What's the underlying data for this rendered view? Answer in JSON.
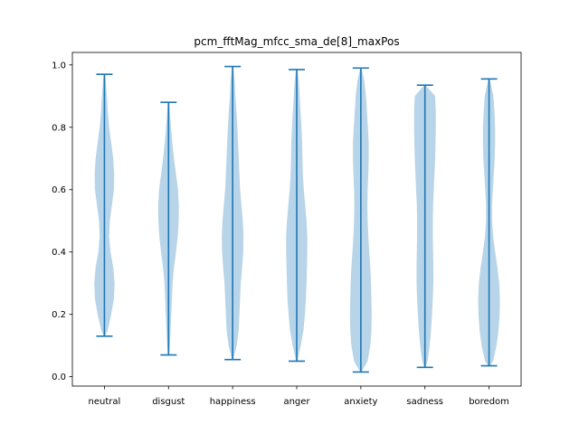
{
  "chart_data": {
    "type": "violin",
    "title": "pcm_fftMag_mfcc_sma_de[8]_maxPos",
    "xlabel": "",
    "ylabel": "",
    "ylim": [
      -0.03,
      1.04
    ],
    "yticks": [
      0.0,
      0.2,
      0.4,
      0.6,
      0.8,
      1.0
    ],
    "ytick_labels": [
      "0.0",
      "0.2",
      "0.4",
      "0.6",
      "0.8",
      "1.0"
    ],
    "categories": [
      "neutral",
      "disgust",
      "happiness",
      "anger",
      "anxiety",
      "sadness",
      "boredom"
    ],
    "grid": false,
    "colors": {
      "body": "#b8d4e8",
      "line": "#1f77b4"
    },
    "violins": [
      {
        "name": "neutral",
        "min": 0.13,
        "max": 0.97,
        "density": [
          [
            0.13,
            0.05
          ],
          [
            0.15,
            0.25
          ],
          [
            0.2,
            0.5
          ],
          [
            0.25,
            0.7
          ],
          [
            0.3,
            0.75
          ],
          [
            0.35,
            0.65
          ],
          [
            0.4,
            0.45
          ],
          [
            0.45,
            0.35
          ],
          [
            0.5,
            0.4
          ],
          [
            0.55,
            0.55
          ],
          [
            0.6,
            0.7
          ],
          [
            0.65,
            0.72
          ],
          [
            0.7,
            0.65
          ],
          [
            0.75,
            0.5
          ],
          [
            0.8,
            0.35
          ],
          [
            0.85,
            0.25
          ],
          [
            0.9,
            0.18
          ],
          [
            0.95,
            0.1
          ],
          [
            0.97,
            0.05
          ]
        ]
      },
      {
        "name": "disgust",
        "min": 0.07,
        "max": 0.88,
        "density": [
          [
            0.07,
            0.05
          ],
          [
            0.1,
            0.1
          ],
          [
            0.15,
            0.15
          ],
          [
            0.2,
            0.2
          ],
          [
            0.25,
            0.25
          ],
          [
            0.3,
            0.3
          ],
          [
            0.35,
            0.4
          ],
          [
            0.4,
            0.55
          ],
          [
            0.45,
            0.68
          ],
          [
            0.5,
            0.75
          ],
          [
            0.55,
            0.76
          ],
          [
            0.6,
            0.7
          ],
          [
            0.65,
            0.55
          ],
          [
            0.7,
            0.4
          ],
          [
            0.75,
            0.28
          ],
          [
            0.8,
            0.18
          ],
          [
            0.85,
            0.1
          ],
          [
            0.88,
            0.05
          ]
        ]
      },
      {
        "name": "happiness",
        "min": 0.055,
        "max": 0.995,
        "density": [
          [
            0.055,
            0.05
          ],
          [
            0.1,
            0.3
          ],
          [
            0.15,
            0.45
          ],
          [
            0.2,
            0.5
          ],
          [
            0.25,
            0.55
          ],
          [
            0.3,
            0.6
          ],
          [
            0.35,
            0.7
          ],
          [
            0.4,
            0.78
          ],
          [
            0.45,
            0.8
          ],
          [
            0.5,
            0.75
          ],
          [
            0.55,
            0.65
          ],
          [
            0.6,
            0.55
          ],
          [
            0.65,
            0.5
          ],
          [
            0.7,
            0.45
          ],
          [
            0.75,
            0.4
          ],
          [
            0.8,
            0.35
          ],
          [
            0.85,
            0.28
          ],
          [
            0.9,
            0.2
          ],
          [
            0.95,
            0.15
          ],
          [
            0.995,
            0.05
          ]
        ]
      },
      {
        "name": "anger",
        "min": 0.05,
        "max": 0.985,
        "density": [
          [
            0.05,
            0.05
          ],
          [
            0.1,
            0.3
          ],
          [
            0.15,
            0.5
          ],
          [
            0.2,
            0.6
          ],
          [
            0.25,
            0.68
          ],
          [
            0.3,
            0.72
          ],
          [
            0.35,
            0.75
          ],
          [
            0.4,
            0.78
          ],
          [
            0.45,
            0.78
          ],
          [
            0.5,
            0.72
          ],
          [
            0.55,
            0.62
          ],
          [
            0.6,
            0.52
          ],
          [
            0.65,
            0.45
          ],
          [
            0.7,
            0.42
          ],
          [
            0.75,
            0.4
          ],
          [
            0.8,
            0.35
          ],
          [
            0.85,
            0.28
          ],
          [
            0.9,
            0.22
          ],
          [
            0.95,
            0.15
          ],
          [
            0.985,
            0.05
          ]
        ]
      },
      {
        "name": "anxiety",
        "min": 0.015,
        "max": 0.99,
        "density": [
          [
            0.015,
            0.05
          ],
          [
            0.05,
            0.5
          ],
          [
            0.1,
            0.7
          ],
          [
            0.15,
            0.78
          ],
          [
            0.2,
            0.8
          ],
          [
            0.25,
            0.78
          ],
          [
            0.3,
            0.75
          ],
          [
            0.35,
            0.7
          ],
          [
            0.4,
            0.62
          ],
          [
            0.45,
            0.55
          ],
          [
            0.5,
            0.5
          ],
          [
            0.55,
            0.48
          ],
          [
            0.6,
            0.5
          ],
          [
            0.65,
            0.55
          ],
          [
            0.7,
            0.58
          ],
          [
            0.75,
            0.58
          ],
          [
            0.8,
            0.52
          ],
          [
            0.85,
            0.45
          ],
          [
            0.9,
            0.38
          ],
          [
            0.95,
            0.25
          ],
          [
            0.99,
            0.05
          ]
        ]
      },
      {
        "name": "sadness",
        "min": 0.03,
        "max": 0.935,
        "density": [
          [
            0.03,
            0.05
          ],
          [
            0.05,
            0.2
          ],
          [
            0.1,
            0.35
          ],
          [
            0.15,
            0.45
          ],
          [
            0.2,
            0.52
          ],
          [
            0.25,
            0.58
          ],
          [
            0.3,
            0.62
          ],
          [
            0.35,
            0.62
          ],
          [
            0.4,
            0.6
          ],
          [
            0.45,
            0.58
          ],
          [
            0.5,
            0.58
          ],
          [
            0.55,
            0.6
          ],
          [
            0.6,
            0.65
          ],
          [
            0.65,
            0.7
          ],
          [
            0.7,
            0.75
          ],
          [
            0.75,
            0.78
          ],
          [
            0.8,
            0.8
          ],
          [
            0.85,
            0.8
          ],
          [
            0.9,
            0.75
          ],
          [
            0.935,
            0.05
          ]
        ]
      },
      {
        "name": "boredom",
        "min": 0.035,
        "max": 0.955,
        "density": [
          [
            0.035,
            0.05
          ],
          [
            0.05,
            0.3
          ],
          [
            0.1,
            0.55
          ],
          [
            0.15,
            0.7
          ],
          [
            0.2,
            0.78
          ],
          [
            0.25,
            0.8
          ],
          [
            0.3,
            0.75
          ],
          [
            0.35,
            0.62
          ],
          [
            0.4,
            0.45
          ],
          [
            0.45,
            0.3
          ],
          [
            0.5,
            0.22
          ],
          [
            0.55,
            0.22
          ],
          [
            0.6,
            0.28
          ],
          [
            0.65,
            0.35
          ],
          [
            0.7,
            0.42
          ],
          [
            0.75,
            0.45
          ],
          [
            0.8,
            0.45
          ],
          [
            0.85,
            0.4
          ],
          [
            0.9,
            0.32
          ],
          [
            0.955,
            0.05
          ]
        ]
      }
    ]
  }
}
